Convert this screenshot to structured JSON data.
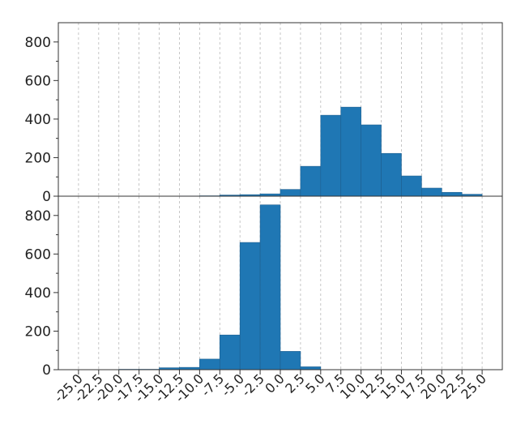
{
  "chart_data": [
    {
      "type": "bar",
      "panel": "top",
      "bin_edges": [
        -25.0,
        -22.5,
        -20.0,
        -17.5,
        -15.0,
        -12.5,
        -10.0,
        -7.5,
        -5.0,
        -2.5,
        0.0,
        2.5,
        5.0,
        7.5,
        10.0,
        12.5,
        15.0,
        17.5,
        20.0,
        22.5,
        25.0
      ],
      "values": [
        0,
        0,
        0,
        0,
        0,
        1,
        2,
        6,
        8,
        12,
        35,
        155,
        420,
        462,
        370,
        222,
        105,
        42,
        20,
        10
      ],
      "ylim": [
        0,
        900
      ],
      "yticks": [
        "0",
        "200",
        "400",
        "600",
        "800"
      ],
      "ytick_values": [
        0,
        200,
        400,
        600,
        800
      ],
      "grid": "x-only dashed",
      "color": "#1f77b4"
    },
    {
      "type": "bar",
      "panel": "bottom",
      "bin_edges": [
        -25.0,
        -22.5,
        -20.0,
        -17.5,
        -15.0,
        -12.5,
        -10.0,
        -7.5,
        -5.0,
        -2.5,
        0.0,
        2.5,
        5.0,
        7.5,
        10.0,
        12.5,
        15.0,
        17.5,
        20.0,
        22.5,
        25.0
      ],
      "values": [
        0,
        0,
        2,
        2,
        10,
        12,
        55,
        180,
        660,
        855,
        95,
        15,
        0,
        0,
        0,
        0,
        0,
        0,
        0,
        0
      ],
      "ylim": [
        0,
        900
      ],
      "yticks": [
        "0",
        "200",
        "400",
        "600",
        "800"
      ],
      "ytick_values": [
        0,
        200,
        400,
        600,
        800
      ],
      "xticks": [
        "-25.0",
        "-22.5",
        "-20.0",
        "-17.5",
        "-15.0",
        "-12.5",
        "-10.0",
        "-7.5",
        "-5.0",
        "-2.5",
        "0.0",
        "2.5",
        "5.0",
        "7.5",
        "10.0",
        "12.5",
        "15.0",
        "17.5",
        "20.0",
        "22.5",
        "25.0"
      ],
      "xtick_values": [
        -25.0,
        -22.5,
        -20.0,
        -17.5,
        -15.0,
        -12.5,
        -10.0,
        -7.5,
        -5.0,
        -2.5,
        0.0,
        2.5,
        5.0,
        7.5,
        10.0,
        12.5,
        15.0,
        17.5,
        20.0,
        22.5,
        25.0
      ],
      "xlim": [
        -27.5,
        27.5
      ],
      "grid": "x-only dashed",
      "color": "#1f77b4"
    }
  ]
}
